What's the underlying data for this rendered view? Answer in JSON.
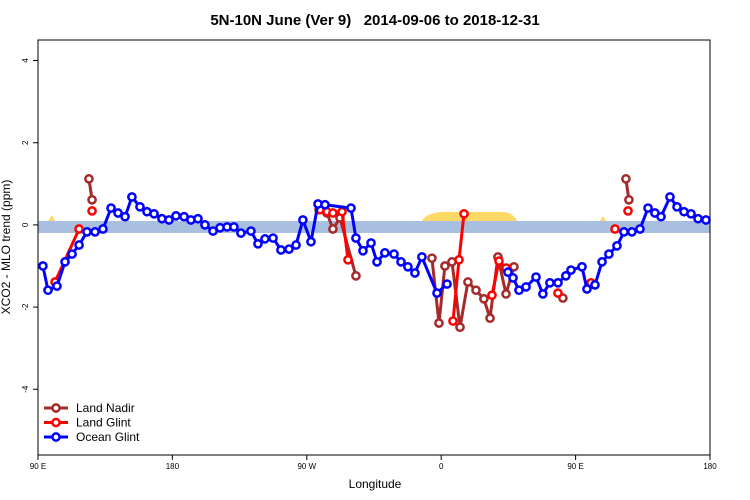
{
  "chart_data": {
    "type": "line",
    "title": "5N-10N June (Ver 9)   2014-09-06 to 2018-12-31",
    "x_label": "Longitude",
    "y_label": "XCO2 - MLO trend (ppm)",
    "xlim": [
      90,
      540
    ],
    "ylim": [
      -5.6,
      4.5
    ],
    "xticks": [
      {
        "value": 90,
        "label": "90 E"
      },
      {
        "value": 180,
        "label": "180"
      },
      {
        "value": 270,
        "label": "90 W"
      },
      {
        "value": 360,
        "label": "0"
      },
      {
        "value": 450,
        "label": "90 E"
      },
      {
        "value": 540,
        "label": "180"
      }
    ],
    "yticks": [
      -4,
      -2,
      0,
      2,
      4
    ],
    "legend": "bottom-left",
    "series": [
      {
        "name": "Land Nadir",
        "color": "#a52a2a",
        "x": [
          124.1,
          126.2,
          null,
          278.2,
          283.5,
          287.5,
          292.2,
          302.9,
          null,
          353.8,
          358.5,
          362.5,
          367.2,
          372.6,
          377.9,
          383.3,
          388.6,
          392.7,
          398.0,
          403.4,
          408.7,
          null,
          441.5,
          null,
          483.7,
          485.7
        ],
        "values": [
          1.12,
          0.61,
          null,
          0.37,
          0.29,
          -0.1,
          0.17,
          -1.24,
          null,
          -0.81,
          -2.39,
          -1.0,
          -0.9,
          -2.49,
          -1.39,
          -1.59,
          -1.8,
          -2.27,
          -0.78,
          -1.68,
          -1.02,
          null,
          -1.78,
          null,
          1.12,
          0.61
        ]
      },
      {
        "name": "Land Glint",
        "color": "#ff0000",
        "x": [
          101.4,
          117.5,
          null,
          126.2,
          null,
          278.8,
          283.5,
          287.5,
          293.6,
          297.6,
          null,
          367.9,
          371.9,
          375.3,
          null,
          394.0,
          398.7,
          403.4,
          null,
          438.2,
          null,
          460.3,
          null,
          476.4,
          null,
          485.1
        ],
        "values": [
          -1.39,
          -0.1,
          null,
          0.34,
          null,
          0.37,
          0.32,
          0.29,
          0.32,
          -0.85,
          null,
          -2.34,
          -0.85,
          0.27,
          null,
          -1.71,
          -0.88,
          -1.05,
          null,
          -1.66,
          null,
          -1.41,
          null,
          -0.1,
          null,
          0.34
        ]
      },
      {
        "name": "Ocean Glint",
        "color": "#0000ff",
        "x": [
          93.3,
          96.7,
          102.7,
          108.1,
          112.8,
          117.5,
          122.8,
          128.2,
          133.5,
          138.9,
          143.6,
          148.3,
          152.9,
          158.3,
          163.0,
          167.7,
          173.0,
          177.7,
          182.4,
          187.8,
          192.4,
          197.1,
          201.8,
          207.2,
          211.9,
          216.6,
          221.2,
          225.9,
          232.6,
          237.3,
          242.0,
          247.4,
          252.7,
          258.1,
          262.8,
          267.4,
          272.8,
          277.5,
          282.2,
          299.6,
          302.9,
          307.6,
          313.0,
          317.0,
          322.3,
          328.4,
          333.1,
          337.7,
          342.4,
          347.1,
          357.2,
          363.9,
          null,
          404.7,
          408.1,
          412.1,
          416.8,
          423.5,
          428.1,
          432.8,
          438.2,
          443.5,
          446.9,
          454.3,
          457.6,
          463.0,
          467.7,
          472.3,
          477.7,
          482.4,
          487.7,
          493.1,
          498.5,
          503.1,
          507.2,
          513.2,
          517.9,
          522.6,
          527.3,
          532.0,
          537.3
        ],
        "values": [
          -1.0,
          -1.59,
          -1.49,
          -0.9,
          -0.71,
          -0.49,
          -0.17,
          -0.17,
          -0.1,
          0.41,
          0.29,
          0.2,
          0.68,
          0.44,
          0.32,
          0.27,
          0.15,
          0.12,
          0.22,
          0.2,
          0.12,
          0.15,
          0,
          -0.15,
          -0.07,
          -0.05,
          -0.05,
          -0.2,
          -0.15,
          -0.46,
          -0.34,
          -0.32,
          -0.61,
          -0.59,
          -0.49,
          0.12,
          -0.41,
          0.51,
          0.49,
          0.41,
          -0.32,
          -0.63,
          -0.44,
          -0.9,
          -0.68,
          -0.71,
          -0.9,
          -1.02,
          -1.17,
          -0.78,
          -1.66,
          -1.44,
          null,
          -1.15,
          -1.29,
          -1.59,
          -1.51,
          -1.27,
          -1.68,
          -1.41,
          -1.41,
          -1.24,
          -1.1,
          -1.02,
          -1.56,
          -1.46,
          -0.9,
          -0.71,
          -0.51,
          -0.17,
          -0.17,
          -0.1,
          0.41,
          0.29,
          0.2,
          0.68,
          0.44,
          0.32,
          0.27,
          0.15,
          0.12
        ]
      }
    ]
  }
}
